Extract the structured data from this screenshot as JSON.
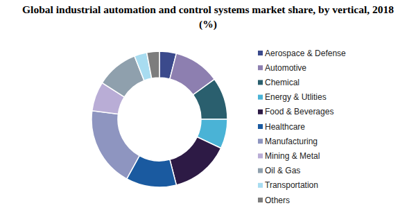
{
  "chart_data": {
    "type": "donut",
    "title": "Global industrial automation and control systems market share, by vertical, 2018 (%)",
    "categories": [
      "Aerospace & Defense",
      "Automotive",
      "Chemical",
      "Energy & Utlities",
      "Food & Beverages",
      "Healthcare",
      "Manufacturing",
      "Mining & Metal",
      "Oil & Gas",
      "Transportation",
      "Others"
    ],
    "values": [
      4,
      11,
      10,
      7,
      14,
      12,
      19,
      7,
      10,
      3,
      3
    ],
    "colors": [
      "#3b4a8c",
      "#8d7fb0",
      "#2a5f6e",
      "#4ab3d6",
      "#2d1a45",
      "#1a5aa0",
      "#8e95c0",
      "#b9add6",
      "#8fa0ad",
      "#a8dcf0",
      "#7d7d7d"
    ],
    "legend": "right"
  }
}
